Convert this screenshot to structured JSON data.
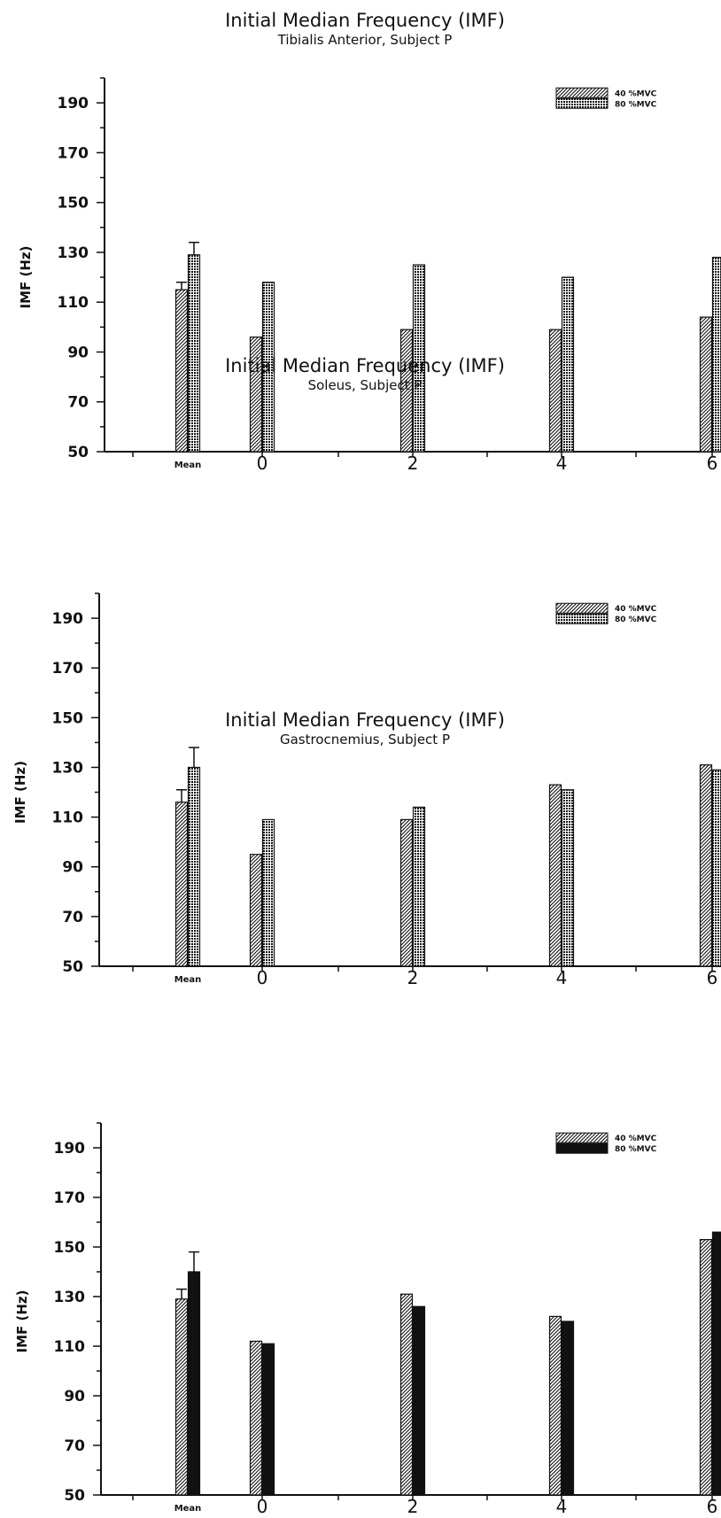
{
  "chart_data": [
    {
      "type": "bar",
      "title": "Initial Median Frequency (IMF)",
      "subtitle": "Tibialis Anterior, Subject P",
      "ylabel": "IMF (Hz)",
      "xlabel": "",
      "ylim": [
        50,
        200
      ],
      "yticks": [
        50,
        70,
        90,
        110,
        130,
        150,
        170,
        190
      ],
      "categories": [
        "Mean",
        "0",
        "2",
        "4",
        "6"
      ],
      "series": [
        {
          "name": "40 %MVC",
          "pattern": "hatch",
          "values": [
            115,
            96,
            99,
            99,
            104
          ],
          "error": [
            3,
            null,
            null,
            null,
            null
          ]
        },
        {
          "name": "80 %MVC",
          "pattern": "dots",
          "values": [
            129,
            118,
            125,
            120,
            128
          ],
          "error": [
            5,
            null,
            null,
            null,
            null
          ]
        }
      ],
      "legend": "top-right",
      "grid": false
    },
    {
      "type": "bar",
      "title": "Initial Median Frequency (IMF)",
      "subtitle": "Soleus, Subject P",
      "ylabel": "IMF (Hz)",
      "xlabel": "",
      "ylim": [
        50,
        200
      ],
      "yticks": [
        50,
        70,
        90,
        110,
        130,
        150,
        170,
        190
      ],
      "categories": [
        "Mean",
        "0",
        "2",
        "4",
        "6"
      ],
      "series": [
        {
          "name": "40 %MVC",
          "pattern": "hatch",
          "values": [
            116,
            95,
            109,
            123,
            131
          ],
          "error": [
            5,
            null,
            null,
            null,
            null
          ]
        },
        {
          "name": "80 %MVC",
          "pattern": "dots",
          "values": [
            130,
            109,
            114,
            121,
            129
          ],
          "error": [
            8,
            null,
            null,
            null,
            null
          ]
        }
      ],
      "legend": "top-right",
      "grid": false
    },
    {
      "type": "bar",
      "title": "Initial Median Frequency (IMF)",
      "subtitle": "Gastrocnemius, Subject P",
      "ylabel": "IMF (Hz)",
      "xlabel": "",
      "ylim": [
        50,
        200
      ],
      "yticks": [
        50,
        70,
        90,
        110,
        130,
        150,
        170,
        190
      ],
      "categories": [
        "Mean",
        "0",
        "2",
        "4",
        "6"
      ],
      "series": [
        {
          "name": "40 %MVC",
          "pattern": "hatch",
          "values": [
            129,
            112,
            131,
            122,
            153
          ],
          "error": [
            4,
            null,
            null,
            null,
            null
          ]
        },
        {
          "name": "80 %MVC",
          "pattern": "solid",
          "values": [
            140,
            111,
            126,
            120,
            156
          ],
          "error": [
            8,
            null,
            null,
            null,
            null
          ]
        }
      ],
      "legend": "top-right",
      "grid": false
    }
  ],
  "colors": {
    "ink": "#111111",
    "paper": "#ffffff"
  }
}
